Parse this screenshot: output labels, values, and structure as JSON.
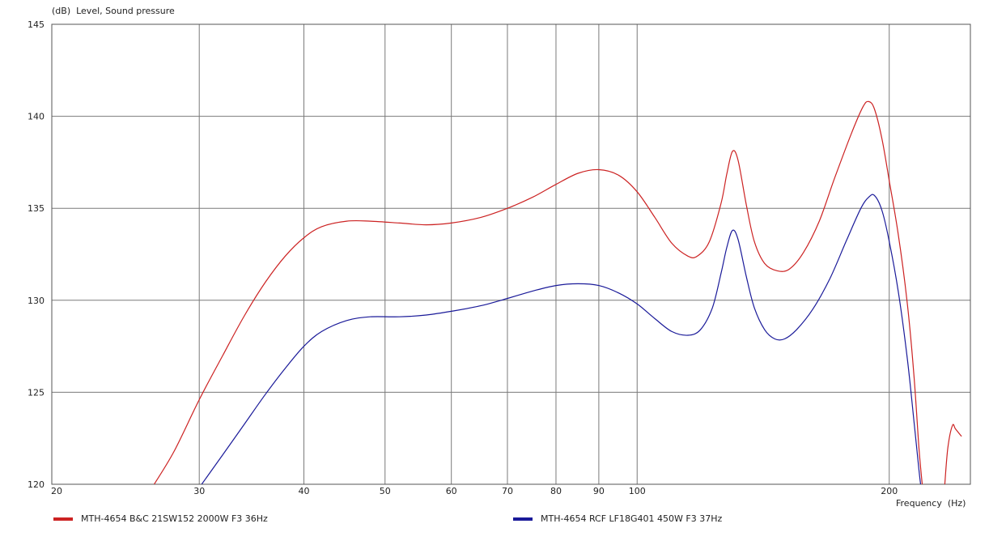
{
  "chart_data": {
    "type": "line",
    "title": "",
    "ylabel": "(dB)  Level, Sound pressure",
    "xlabel": "Frequency  (Hz)",
    "x_scale": "log",
    "xlim": [
      20,
      250
    ],
    "ylim": [
      120,
      145
    ],
    "y_ticks": [
      120,
      125,
      130,
      135,
      140,
      145
    ],
    "x_ticks": [
      20,
      30,
      40,
      50,
      60,
      70,
      80,
      90,
      100,
      200
    ],
    "grid": true,
    "legend_position": "bottom",
    "series": [
      {
        "name": "MTH-4654 B&C 21SW152 2000W F3 36Hz",
        "color": "#cc2222",
        "points": [
          [
            26.5,
            120.0
          ],
          [
            28,
            121.8
          ],
          [
            30,
            124.6
          ],
          [
            32,
            127.0
          ],
          [
            34,
            129.2
          ],
          [
            36,
            131.0
          ],
          [
            38,
            132.4
          ],
          [
            40,
            133.4
          ],
          [
            42,
            134.0
          ],
          [
            45,
            134.3
          ],
          [
            48,
            134.3
          ],
          [
            52,
            134.2
          ],
          [
            56,
            134.1
          ],
          [
            60,
            134.2
          ],
          [
            65,
            134.5
          ],
          [
            70,
            135.0
          ],
          [
            75,
            135.6
          ],
          [
            80,
            136.3
          ],
          [
            85,
            136.9
          ],
          [
            90,
            137.1
          ],
          [
            95,
            136.8
          ],
          [
            100,
            135.9
          ],
          [
            105,
            134.5
          ],
          [
            110,
            133.1
          ],
          [
            115,
            132.4
          ],
          [
            118,
            132.4
          ],
          [
            122,
            133.2
          ],
          [
            126,
            135.3
          ],
          [
            128,
            136.9
          ],
          [
            130,
            138.1
          ],
          [
            132,
            137.6
          ],
          [
            135,
            135.2
          ],
          [
            138,
            133.2
          ],
          [
            142,
            132.0
          ],
          [
            147,
            131.6
          ],
          [
            152,
            131.7
          ],
          [
            158,
            132.6
          ],
          [
            165,
            134.3
          ],
          [
            172,
            136.6
          ],
          [
            180,
            139.0
          ],
          [
            186,
            140.5
          ],
          [
            189,
            140.8
          ],
          [
            192,
            140.4
          ],
          [
            196,
            138.8
          ],
          [
            200,
            136.5
          ],
          [
            205,
            133.6
          ],
          [
            210,
            130.0
          ],
          [
            214,
            126.0
          ],
          [
            217,
            122.0
          ],
          [
            219,
            120.0
          ]
        ],
        "points_tail": [
          [
            233,
            120.0
          ],
          [
            235,
            122.0
          ],
          [
            238,
            123.2
          ],
          [
            240,
            123.0
          ],
          [
            244,
            122.6
          ]
        ]
      },
      {
        "name": "MTH-4654 RCF LF18G401 450W F3 37Hz",
        "color": "#1a1a99",
        "points": [
          [
            30.2,
            120.0
          ],
          [
            32,
            121.6
          ],
          [
            34,
            123.3
          ],
          [
            36,
            124.9
          ],
          [
            38,
            126.3
          ],
          [
            40,
            127.5
          ],
          [
            42,
            128.3
          ],
          [
            45,
            128.9
          ],
          [
            48,
            129.1
          ],
          [
            52,
            129.1
          ],
          [
            56,
            129.2
          ],
          [
            60,
            129.4
          ],
          [
            65,
            129.7
          ],
          [
            70,
            130.1
          ],
          [
            75,
            130.5
          ],
          [
            80,
            130.8
          ],
          [
            85,
            130.9
          ],
          [
            90,
            130.8
          ],
          [
            95,
            130.4
          ],
          [
            100,
            129.8
          ],
          [
            105,
            129.0
          ],
          [
            110,
            128.3
          ],
          [
            115,
            128.1
          ],
          [
            119,
            128.4
          ],
          [
            123,
            129.6
          ],
          [
            126,
            131.5
          ],
          [
            128,
            132.9
          ],
          [
            130,
            133.8
          ],
          [
            132,
            133.3
          ],
          [
            135,
            131.3
          ],
          [
            138,
            129.6
          ],
          [
            142,
            128.4
          ],
          [
            146,
            127.9
          ],
          [
            150,
            127.9
          ],
          [
            155,
            128.4
          ],
          [
            162,
            129.5
          ],
          [
            170,
            131.2
          ],
          [
            178,
            133.3
          ],
          [
            185,
            135.0
          ],
          [
            189,
            135.6
          ],
          [
            192,
            135.7
          ],
          [
            196,
            134.9
          ],
          [
            200,
            133.2
          ],
          [
            205,
            130.5
          ],
          [
            210,
            127.0
          ],
          [
            214,
            123.5
          ],
          [
            217,
            120.8
          ],
          [
            218,
            120.0
          ]
        ]
      }
    ]
  }
}
